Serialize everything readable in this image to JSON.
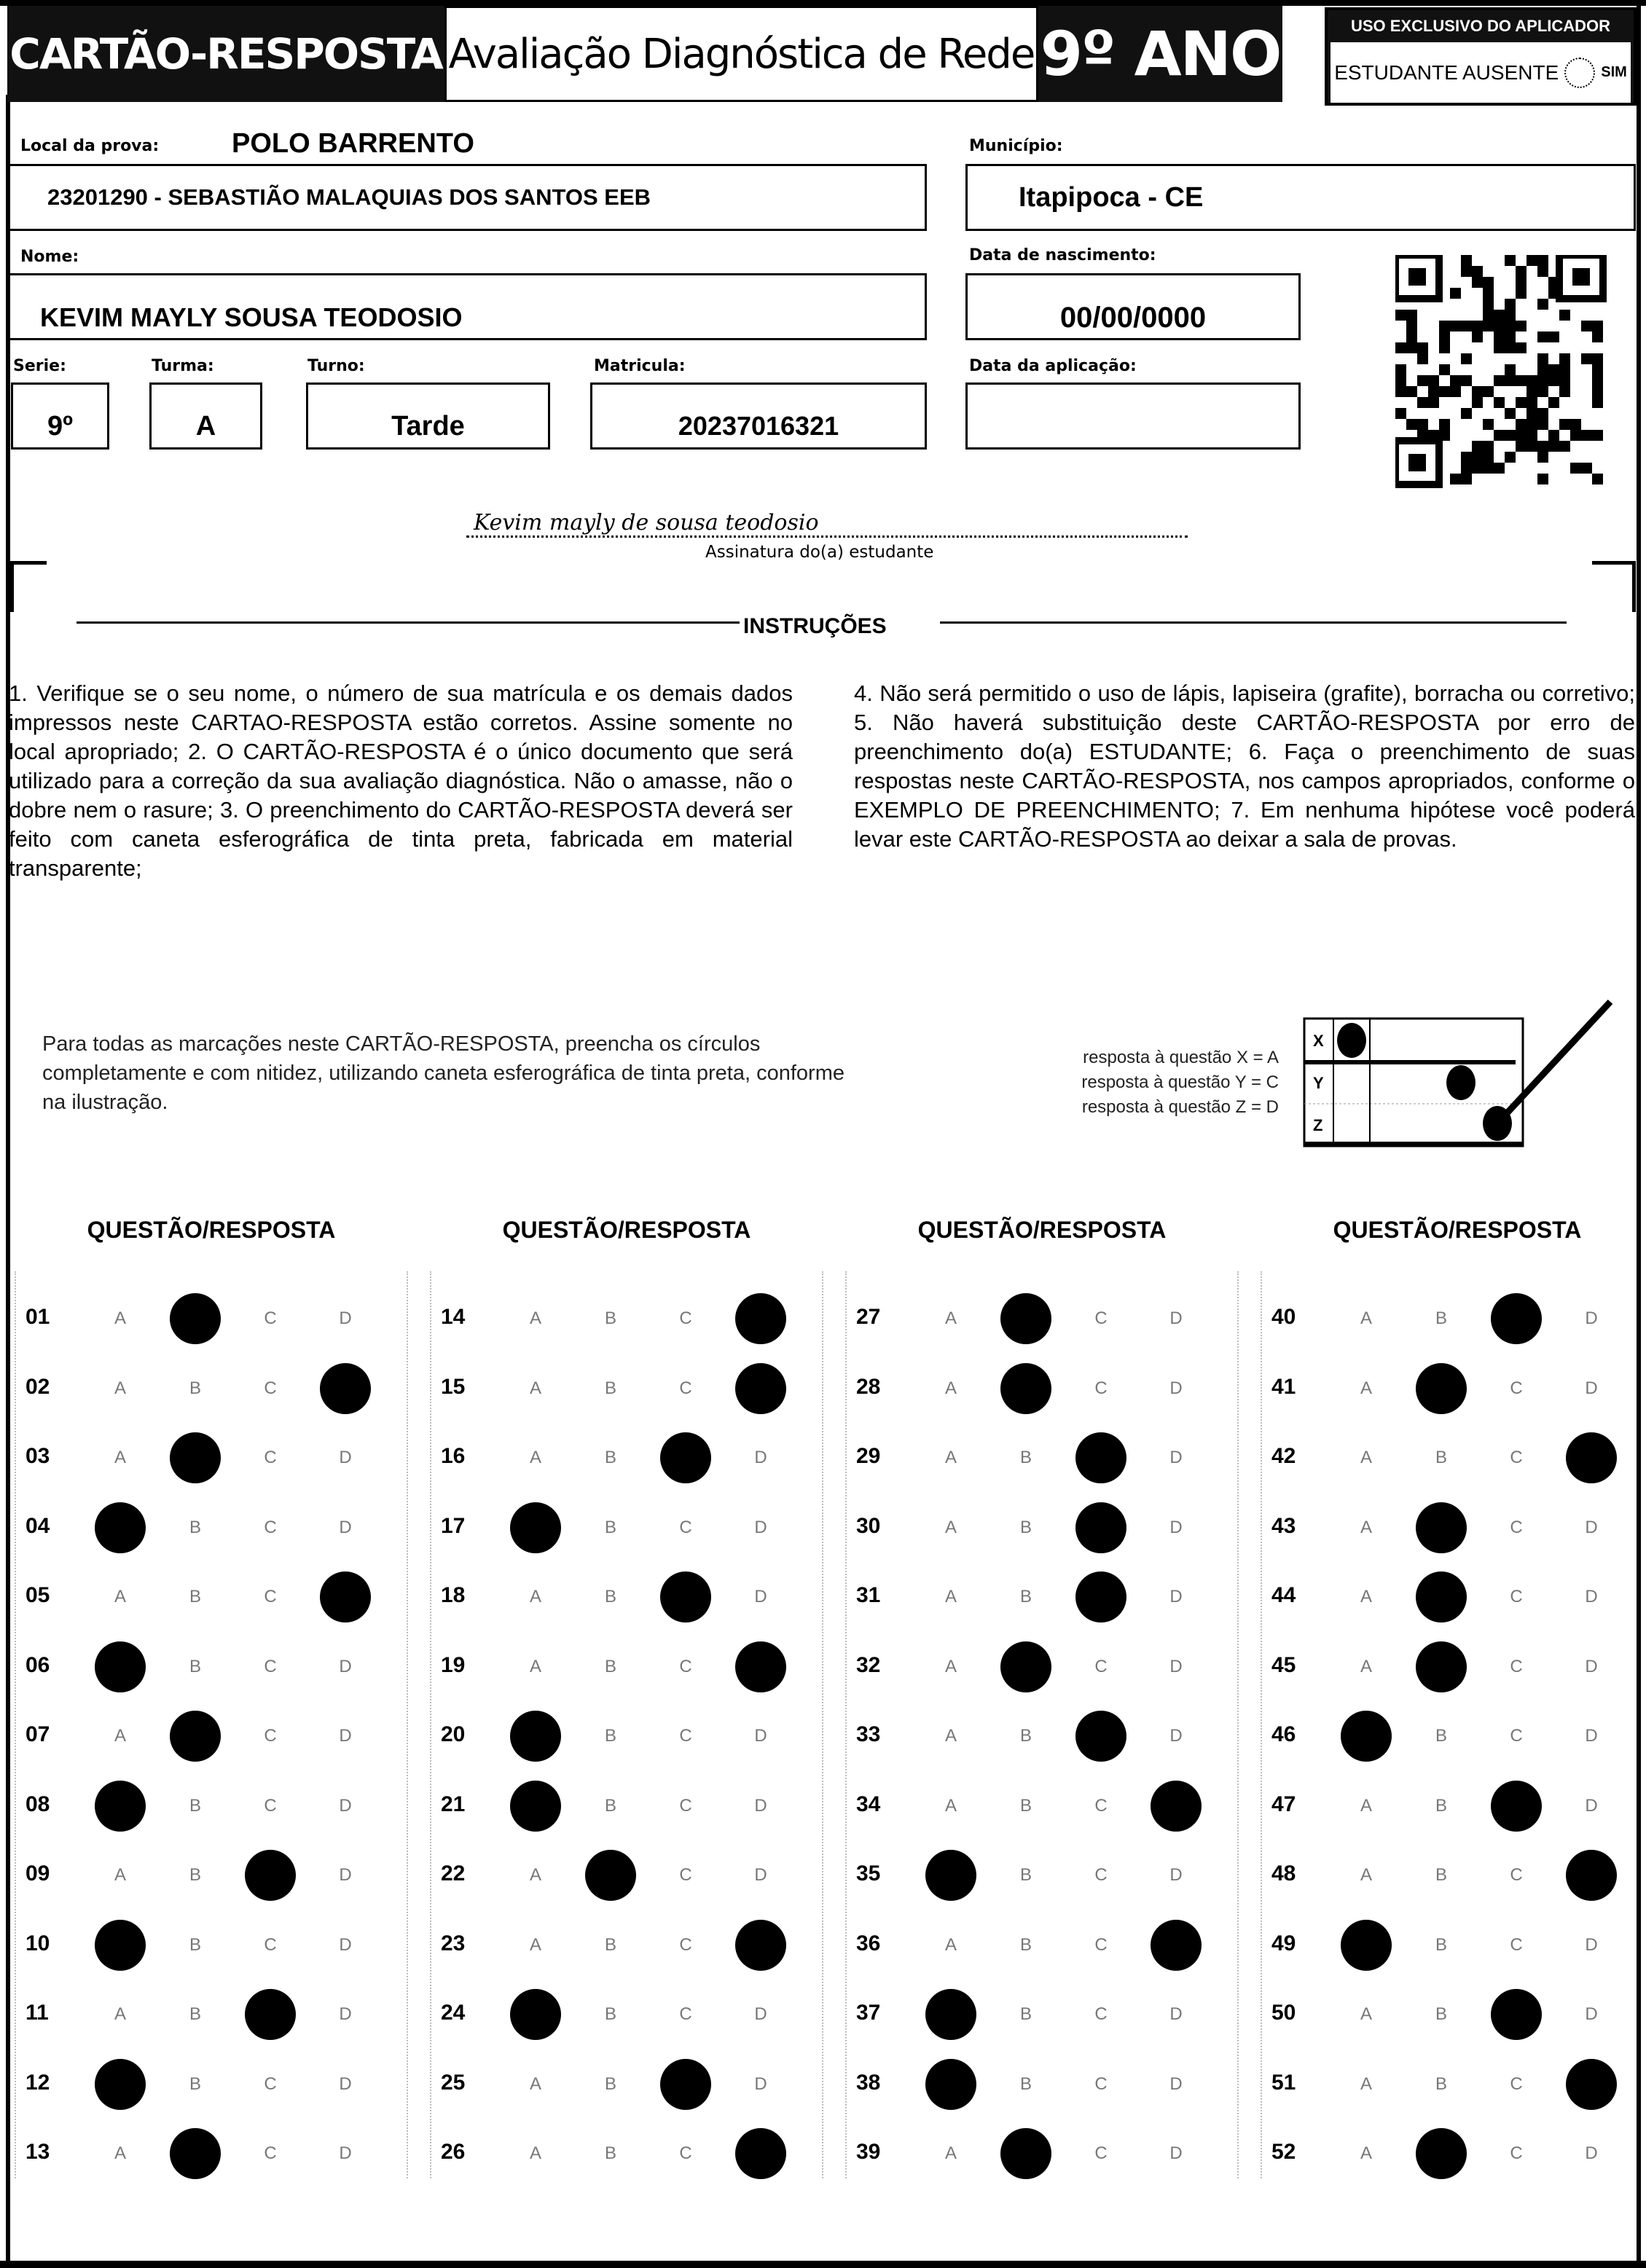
{
  "header": {
    "title": "CARTÃO-RESPOSTA",
    "subtitle": "Avaliação Diagnóstica de Rede",
    "grade": "9º ANO",
    "applicator_title": "USO EXCLUSIVO DO APLICADOR",
    "absent_label": "ESTUDANTE AUSENTE",
    "absent_option": "SIM"
  },
  "fields": {
    "local_label": "Local da prova:",
    "local_value": "POLO BARRENTO",
    "school": "23201290 - SEBASTIÃO MALAQUIAS DOS SANTOS EEB",
    "municipio_label": "Município:",
    "municipio": "Itapipoca - CE",
    "nome_label": "Nome:",
    "nome": "KEVIM MAYLY SOUSA TEODOSIO",
    "nasc_label": "Data de nascimento:",
    "nasc": "00/00/0000",
    "serie_label": "Serie:",
    "serie": "9º",
    "turma_label": "Turma:",
    "turma": "A",
    "turno_label": "Turno:",
    "turno": "Tarde",
    "matricula_label": "Matricula:",
    "matricula": "20237016321",
    "aplicacao_label": "Data da aplicação:",
    "aplicacao": ""
  },
  "signature": {
    "text": "Kevim  mayly  de  sousa  teodosio",
    "label": "Assinatura do(a) estudante"
  },
  "instructions": {
    "title": "INSTRUÇÕES",
    "left": "1. Verifique se o seu nome, o número de sua matrícula e os demais dados impressos neste CARTAO-RESPOSTA estão corretos. Assine somente no local apropriado; 2. O CARTÃO-RESPOSTA é o único documento que será utilizado para a correção da sua avaliação diagnóstica. Não o amasse, não o dobre nem o rasure; 3. O preenchimento do CARTÃO-RESPOSTA deverá ser feito com caneta esferográfica de tinta preta, fabricada em material transparente;",
    "right": "4. Não será permitido o uso de lápis, lapiseira (grafite), borracha ou corretivo; 5. Não haverá substituição deste CARTÃO-RESPOSTA por erro de preenchimento do(a) ESTUDANTE; 6. Faça o preenchimento de suas respostas neste CARTÃO-RESPOSTA, nos campos apropriados, conforme o EXEMPLO DE PREENCHIMENTO; 7. Em nenhuma hipótese você poderá levar este CARTÃO-RESPOSTA ao deixar a sala de provas."
  },
  "example": {
    "text": "Para todas as marcações neste CARTÃO-RESPOSTA, preencha os círculos completamente e com nitidez, utilizando caneta esferográfica de tinta preta, conforme na ilustração.",
    "lines": [
      "resposta à questão X = A",
      "resposta à questão Y = C",
      "resposta à questão Z = D"
    ],
    "rows": [
      {
        "label": "X",
        "answer": "A"
      },
      {
        "label": "Y",
        "answer": "C"
      },
      {
        "label": "Z",
        "answer": "D"
      }
    ]
  },
  "answers_header": "QUESTÃO/RESPOSTA",
  "options": [
    "A",
    "B",
    "C",
    "D"
  ],
  "answers": [
    [
      "01",
      "B"
    ],
    [
      "02",
      "D"
    ],
    [
      "03",
      "B"
    ],
    [
      "04",
      "A"
    ],
    [
      "05",
      "D"
    ],
    [
      "06",
      "A"
    ],
    [
      "07",
      "B"
    ],
    [
      "08",
      "A"
    ],
    [
      "09",
      "C"
    ],
    [
      "10",
      "A"
    ],
    [
      "11",
      "C"
    ],
    [
      "12",
      "A"
    ],
    [
      "13",
      "B"
    ],
    [
      "14",
      "D"
    ],
    [
      "15",
      "D"
    ],
    [
      "16",
      "C"
    ],
    [
      "17",
      "A"
    ],
    [
      "18",
      "C"
    ],
    [
      "19",
      "D"
    ],
    [
      "20",
      "A"
    ],
    [
      "21",
      "A"
    ],
    [
      "22",
      "B"
    ],
    [
      "23",
      "D"
    ],
    [
      "24",
      "A"
    ],
    [
      "25",
      "C"
    ],
    [
      "26",
      "D"
    ],
    [
      "27",
      "B"
    ],
    [
      "28",
      "B"
    ],
    [
      "29",
      "C"
    ],
    [
      "30",
      "C"
    ],
    [
      "31",
      "C"
    ],
    [
      "32",
      "B"
    ],
    [
      "33",
      "C"
    ],
    [
      "34",
      "D"
    ],
    [
      "35",
      "A"
    ],
    [
      "36",
      "D"
    ],
    [
      "37",
      "A"
    ],
    [
      "38",
      "A"
    ],
    [
      "39",
      "B"
    ],
    [
      "40",
      "C"
    ],
    [
      "41",
      "B"
    ],
    [
      "42",
      "D"
    ],
    [
      "43",
      "B"
    ],
    [
      "44",
      "B"
    ],
    [
      "45",
      "B"
    ],
    [
      "46",
      "A"
    ],
    [
      "47",
      "C"
    ],
    [
      "48",
      "D"
    ],
    [
      "49",
      "A"
    ],
    [
      "50",
      "C"
    ],
    [
      "51",
      "D"
    ],
    [
      "52",
      "B"
    ]
  ]
}
